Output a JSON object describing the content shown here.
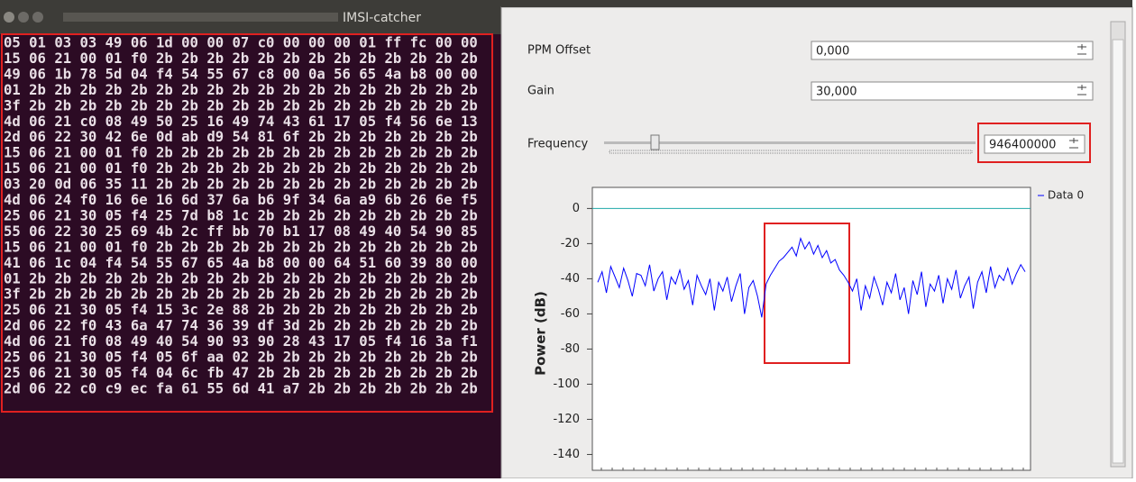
{
  "terminal": {
    "title": "IMSI-catcher",
    "lines": [
      "05 01 03 03 49 06 1d 00 00 07 c0 00 00 00 01 ff fc 00 00",
      "15 06 21 00 01 f0 2b 2b 2b 2b 2b 2b 2b 2b 2b 2b 2b 2b 2b",
      "49 06 1b 78 5d 04 f4 54 55 67 c8 00 0a 56 65 4a b8 00 00",
      "01 2b 2b 2b 2b 2b 2b 2b 2b 2b 2b 2b 2b 2b 2b 2b 2b 2b 2b",
      "3f 2b 2b 2b 2b 2b 2b 2b 2b 2b 2b 2b 2b 2b 2b 2b 2b 2b 2b",
      "4d 06 21 c0 08 49 50 25 16 49 74 43 61 17 05 f4 56 6e 13",
      "2d 06 22 30 42 6e 0d ab d9 54 81 6f 2b 2b 2b 2b 2b 2b 2b",
      "15 06 21 00 01 f0 2b 2b 2b 2b 2b 2b 2b 2b 2b 2b 2b 2b 2b",
      "15 06 21 00 01 f0 2b 2b 2b 2b 2b 2b 2b 2b 2b 2b 2b 2b 2b",
      "03 20 0d 06 35 11 2b 2b 2b 2b 2b 2b 2b 2b 2b 2b 2b 2b 2b",
      "4d 06 24 f0 16 6e 16 6d 37 6a b6 9f 34 6a a9 6b 26 6e f5",
      "25 06 21 30 05 f4 25 7d b8 1c 2b 2b 2b 2b 2b 2b 2b 2b 2b",
      "55 06 22 30 25 69 4b 2c ff bb 70 b1 17 08 49 40 54 90 85",
      "15 06 21 00 01 f0 2b 2b 2b 2b 2b 2b 2b 2b 2b 2b 2b 2b 2b",
      "41 06 1c 04 f4 54 55 67 65 4a b8 00 00 64 51 60 39 80 00",
      "01 2b 2b 2b 2b 2b 2b 2b 2b 2b 2b 2b 2b 2b 2b 2b 2b 2b 2b",
      "3f 2b 2b 2b 2b 2b 2b 2b 2b 2b 2b 2b 2b 2b 2b 2b 2b 2b 2b",
      "25 06 21 30 05 f4 15 3c 2e 88 2b 2b 2b 2b 2b 2b 2b 2b 2b",
      "2d 06 22 f0 43 6a 47 74 36 39 df 3d 2b 2b 2b 2b 2b 2b 2b",
      "4d 06 21 f0 08 49 40 54 90 93 90 28 43 17 05 f4 16 3a f1",
      "25 06 21 30 05 f4 05 6f aa 02 2b 2b 2b 2b 2b 2b 2b 2b 2b",
      "25 06 21 30 05 f4 04 6c fb 47 2b 2b 2b 2b 2b 2b 2b 2b 2b",
      "2d 06 22 c0 c9 ec fa 61 55 6d 41 a7 2b 2b 2b 2b 2b 2b 2b"
    ]
  },
  "form": {
    "fields": [
      {
        "label": "PPM Offset",
        "value": "0,000"
      },
      {
        "label": "Gain",
        "value": "30,000"
      },
      {
        "label": "Frequency",
        "value": "946400000"
      }
    ]
  },
  "chart_data": {
    "type": "line",
    "y_label": "Power (dB)",
    "ylim": [
      -149,
      12
    ],
    "yticks": [
      0,
      -20,
      -40,
      -60,
      -80,
      -100,
      -120,
      -140
    ],
    "reference_line": {
      "value": 0,
      "color": "#20a8a8"
    },
    "series": [
      {
        "name": "Data 0",
        "color": "#0000ff",
        "values": [
          -42,
          -36,
          -48,
          -33,
          -39,
          -45,
          -34,
          -41,
          -50,
          -37,
          -38,
          -44,
          -32,
          -47,
          -40,
          -36,
          -52,
          -39,
          -43,
          -35,
          -46,
          -41,
          -55,
          -38,
          -44,
          -49,
          -40,
          -58,
          -42,
          -47,
          -39,
          -53,
          -44,
          -37,
          -60,
          -45,
          -41,
          -50,
          -62,
          -43,
          -38,
          -34,
          -30,
          -28,
          -25,
          -22,
          -27,
          -17,
          -23,
          -19,
          -26,
          -21,
          -28,
          -24,
          -31,
          -29,
          -35,
          -38,
          -42,
          -47,
          -40,
          -58,
          -44,
          -51,
          -39,
          -46,
          -55,
          -42,
          -48,
          -37,
          -52,
          -45,
          -60,
          -41,
          -49,
          -36,
          -56,
          -43,
          -47,
          -38,
          -54,
          -40,
          -46,
          -35,
          -51,
          -44,
          -39,
          -57,
          -42,
          -36,
          -48,
          -33,
          -45,
          -38,
          -41,
          -34,
          -43,
          -37,
          -32,
          -36
        ]
      }
    ]
  }
}
